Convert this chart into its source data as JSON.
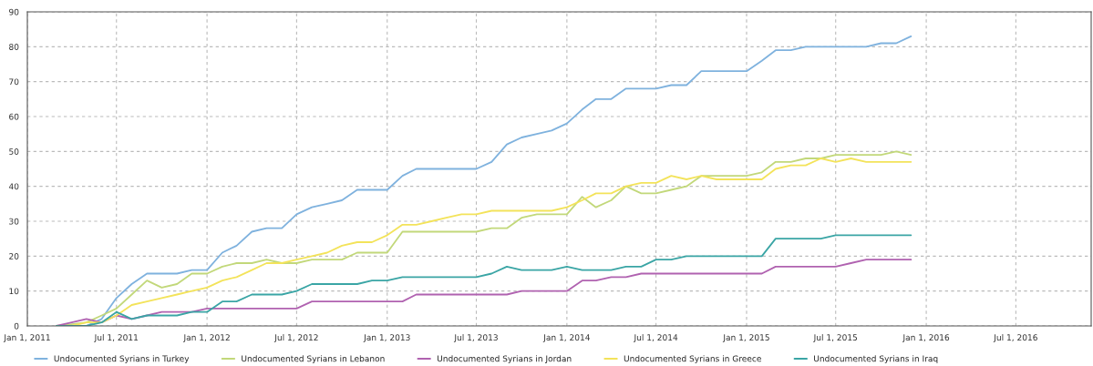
{
  "chart_data": {
    "type": "line",
    "x": [
      "2011-03",
      "2011-04",
      "2011-05",
      "2011-06",
      "2011-07",
      "2011-08",
      "2011-09",
      "2011-10",
      "2011-11",
      "2011-12",
      "2012-01",
      "2012-02",
      "2012-03",
      "2012-04",
      "2012-05",
      "2012-06",
      "2012-07",
      "2012-08",
      "2012-09",
      "2012-10",
      "2012-11",
      "2012-12",
      "2013-01",
      "2013-02",
      "2013-03",
      "2013-04",
      "2013-05",
      "2013-06",
      "2013-07",
      "2013-08",
      "2013-09",
      "2013-10",
      "2013-11",
      "2013-12",
      "2014-01",
      "2014-02",
      "2014-03",
      "2014-04",
      "2014-05",
      "2014-06",
      "2014-07",
      "2014-08",
      "2014-09",
      "2014-10",
      "2014-11",
      "2014-12",
      "2015-01",
      "2015-02",
      "2015-03",
      "2015-04",
      "2015-05",
      "2015-06",
      "2015-07",
      "2015-08",
      "2015-09",
      "2015-10",
      "2015-11",
      "2015-12"
    ],
    "series": [
      {
        "name": "Undocumented Syrians in Turkey",
        "color": "#7fb2de",
        "values": [
          0,
          0,
          0,
          2,
          8,
          12,
          15,
          15,
          15,
          16,
          16,
          21,
          23,
          27,
          28,
          28,
          32,
          34,
          35,
          36,
          39,
          39,
          39,
          43,
          45,
          45,
          45,
          45,
          45,
          47,
          52,
          54,
          55,
          56,
          58,
          62,
          65,
          65,
          68,
          68,
          68,
          69,
          69,
          73,
          73,
          73,
          73,
          76,
          79,
          79,
          80,
          80,
          80,
          80,
          80,
          81,
          81,
          83
        ]
      },
      {
        "name": "Undocumented Syrians in Lebanon",
        "color": "#c2d87a",
        "values": [
          0,
          0.5,
          1,
          3,
          5,
          9,
          13,
          11,
          12,
          15,
          15,
          17,
          18,
          18,
          19,
          18,
          18,
          19,
          19,
          19,
          21,
          21,
          21,
          27,
          27,
          27,
          27,
          27,
          27,
          28,
          28,
          31,
          32,
          32,
          32,
          37,
          34,
          36,
          40,
          38,
          38,
          39,
          40,
          43,
          43,
          43,
          43,
          44,
          47,
          47,
          48,
          48,
          49,
          49,
          49,
          49,
          50,
          49
        ]
      },
      {
        "name": "Undocumented Syrians in Jordan",
        "color": "#b062b0",
        "values": [
          0,
          1,
          2,
          1,
          3,
          2,
          3,
          4,
          4,
          4,
          5,
          5,
          5,
          5,
          5,
          5,
          5,
          7,
          7,
          7,
          7,
          7,
          7,
          7,
          9,
          9,
          9,
          9,
          9,
          9,
          9,
          10,
          10,
          10,
          10,
          13,
          13,
          14,
          14,
          15,
          15,
          15,
          15,
          15,
          15,
          15,
          15,
          15,
          17,
          17,
          17,
          17,
          17,
          18,
          19,
          19,
          19,
          19
        ]
      },
      {
        "name": "Undocumented Syrians in Greece",
        "color": "#f3e35a",
        "values": [
          0,
          0,
          1,
          1,
          3,
          6,
          7,
          8,
          9,
          10,
          11,
          13,
          14,
          16,
          18,
          18,
          19,
          20,
          21,
          23,
          24,
          24,
          26,
          29,
          29,
          30,
          31,
          32,
          32,
          33,
          33,
          33,
          33,
          33,
          34,
          36,
          38,
          38,
          40,
          41,
          41,
          43,
          42,
          43,
          42,
          42,
          42,
          42,
          45,
          46,
          46,
          48,
          47,
          48,
          47,
          47,
          47,
          47
        ]
      },
      {
        "name": "Undocumented Syrians in Iraq",
        "color": "#3aa5a5",
        "values": [
          0,
          0,
          0,
          1,
          4,
          2,
          3,
          3,
          3,
          4,
          4,
          7,
          7,
          9,
          9,
          9,
          10,
          12,
          12,
          12,
          12,
          13,
          13,
          14,
          14,
          14,
          14,
          14,
          14,
          15,
          17,
          16,
          16,
          16,
          17,
          16,
          16,
          16,
          17,
          17,
          19,
          19,
          20,
          20,
          20,
          20,
          20,
          20,
          25,
          25,
          25,
          25,
          26,
          26,
          26,
          26,
          26,
          26
        ]
      }
    ],
    "xlim": [
      "2011-01-01",
      "2016-12-01"
    ],
    "xticks": [
      {
        "value": "2011-01-01",
        "label": "Jan 1, 2011"
      },
      {
        "value": "2011-07-01",
        "label": "Jul 1, 2011"
      },
      {
        "value": "2012-01-01",
        "label": "Jan 1, 2012"
      },
      {
        "value": "2012-07-01",
        "label": "Jul 1, 2012"
      },
      {
        "value": "2013-01-01",
        "label": "Jan 1, 2013"
      },
      {
        "value": "2013-07-01",
        "label": "Jul 1, 2013"
      },
      {
        "value": "2014-01-01",
        "label": "Jan 1, 2014"
      },
      {
        "value": "2014-07-01",
        "label": "Jul 1, 2014"
      },
      {
        "value": "2015-01-01",
        "label": "Jan 1, 2015"
      },
      {
        "value": "2015-07-01",
        "label": "Jul 1, 2015"
      },
      {
        "value": "2016-01-01",
        "label": "Jan 1, 2016"
      },
      {
        "value": "2016-07-01",
        "label": "Jul 1, 2016"
      }
    ],
    "ylim": [
      0,
      90
    ],
    "yticks": [
      0,
      10,
      20,
      30,
      40,
      50,
      60,
      70,
      80,
      90
    ],
    "grid": true,
    "legend": "bottom",
    "marker": "none",
    "line_style": "solid"
  }
}
